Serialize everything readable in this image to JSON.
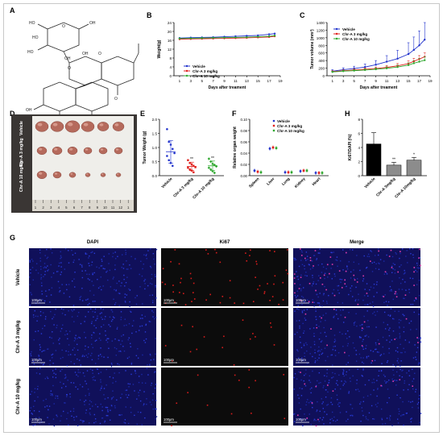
{
  "panels": {
    "a": "A",
    "b": "B",
    "c": "C",
    "d": "D",
    "e": "E",
    "f": "F",
    "g": "G",
    "h": "H"
  },
  "colors": {
    "vehicle": "#2233cc",
    "chr_a_3": "#e0201c",
    "chr_a_10": "#2fa82f",
    "dapi_bg": "#10105a",
    "ki67_bg": "#0c0c0c",
    "bar_vehicle": "#000000",
    "bar_3": "#8c8c8c",
    "bar_10": "#8c8c8c"
  },
  "structure": {
    "ring_labels": [
      "HO",
      "HO",
      "HO",
      "OH",
      "OH",
      "O",
      "O",
      "OH",
      "O",
      "O",
      "O",
      "OH",
      "O"
    ]
  },
  "legend": [
    "Vehicle",
    "Chr-A 3 mg/kg",
    "Chr-A 10 mg/kg"
  ],
  "chart_data": [
    {
      "id": "B",
      "type": "line",
      "ylabel": "Weight(g)",
      "xlabel": "Days after treament",
      "yticks": [
        "0",
        "4",
        "8",
        "12",
        "16",
        "20",
        "24"
      ],
      "ylim": [
        0,
        24
      ],
      "xticks": [
        "1",
        "3",
        "5",
        "7",
        "9",
        "11",
        "13",
        "15",
        "17",
        "19"
      ],
      "xlim": [
        0,
        19
      ],
      "x": [
        1,
        3,
        5,
        7,
        9,
        11,
        13,
        15,
        17,
        18
      ],
      "series": [
        {
          "name": "Vehicle",
          "values": [
            17.0,
            17.2,
            17.3,
            17.4,
            17.6,
            17.8,
            18.0,
            18.2,
            18.7,
            19.0
          ]
        },
        {
          "name": "Chr-A 3 mg/kg",
          "values": [
            16.5,
            16.6,
            16.7,
            16.8,
            16.9,
            17.0,
            17.1,
            17.3,
            17.5,
            17.8
          ]
        },
        {
          "name": "Chr-A 10 mg/kg",
          "values": [
            16.8,
            16.9,
            17.0,
            17.1,
            17.2,
            17.3,
            17.4,
            17.6,
            17.8,
            18.1
          ]
        }
      ]
    },
    {
      "id": "C",
      "type": "line",
      "ylabel": "Tumor volume (mm³)",
      "xlabel": "Days after treament",
      "yticks": [
        "0",
        "200",
        "400",
        "600",
        "800",
        "1000",
        "1200",
        "1400"
      ],
      "ylim": [
        0,
        1400
      ],
      "xticks": [
        "1",
        "3",
        "5",
        "7",
        "9",
        "11",
        "13",
        "15",
        "17",
        "19"
      ],
      "xlim": [
        0,
        19
      ],
      "x": [
        1,
        3,
        5,
        7,
        9,
        11,
        13,
        15,
        16,
        17,
        18
      ],
      "series": [
        {
          "name": "Vehicle",
          "values": [
            120,
            160,
            190,
            230,
            290,
            370,
            450,
            570,
            680,
            800,
            950
          ],
          "err": [
            40,
            50,
            60,
            80,
            110,
            160,
            220,
            300,
            340,
            380,
            450
          ]
        },
        {
          "name": "Chr-A 3 mg/kg",
          "values": [
            110,
            130,
            150,
            170,
            190,
            220,
            260,
            320,
            380,
            440,
            500
          ],
          "err": [
            20,
            25,
            30,
            35,
            40,
            50,
            60,
            70,
            80,
            90,
            100
          ]
        },
        {
          "name": "Chr-A 10 mg/kg",
          "values": [
            100,
            120,
            135,
            150,
            170,
            195,
            230,
            280,
            330,
            370,
            410
          ],
          "err": [
            20,
            25,
            25,
            30,
            35,
            40,
            50,
            60,
            70,
            80,
            90
          ]
        }
      ]
    },
    {
      "id": "E",
      "type": "scatter",
      "ylabel": "Tumor Weight (g)",
      "yticks": [
        "0.0",
        "0.5",
        "1.0",
        "1.5",
        "2.0"
      ],
      "ylim": [
        0,
        2.0
      ],
      "categories": [
        "Vehicle",
        "Chr-A 3 mg/kg",
        "Chr-A 10 mg/kg"
      ],
      "sig": [
        "",
        "**",
        "**"
      ],
      "groups": [
        {
          "name": "Vehicle",
          "mean": 0.85,
          "sd": 0.4,
          "points": [
            1.65,
            1.2,
            1.1,
            0.95,
            0.8,
            0.7,
            0.55,
            0.45,
            0.35
          ]
        },
        {
          "name": "Chr-A 3 mg/kg",
          "mean": 0.33,
          "sd": 0.15,
          "points": [
            0.55,
            0.45,
            0.4,
            0.35,
            0.3,
            0.28,
            0.22,
            0.18,
            0.12
          ]
        },
        {
          "name": "Chr-A 10 mg/kg",
          "mean": 0.35,
          "sd": 0.17,
          "points": [
            0.6,
            0.5,
            0.42,
            0.38,
            0.33,
            0.28,
            0.22,
            0.16,
            0.1
          ]
        }
      ]
    },
    {
      "id": "F",
      "type": "scatter",
      "ylabel": "Relative organ weight",
      "yticks": [
        "0.00",
        "0.02",
        "0.04",
        "0.06",
        "0.08",
        "0.10"
      ],
      "ylim": [
        0,
        0.1
      ],
      "categories": [
        "Spleen",
        "Liver",
        "Lung",
        "Kidney",
        "Heart"
      ],
      "series": [
        {
          "name": "Vehicle",
          "values": [
            0.009,
            0.048,
            0.006,
            0.008,
            0.005
          ]
        },
        {
          "name": "Chr-A 3 mg/kg",
          "values": [
            0.007,
            0.05,
            0.006,
            0.009,
            0.005
          ]
        },
        {
          "name": "Chr-A 10 mg/kg",
          "values": [
            0.006,
            0.049,
            0.006,
            0.009,
            0.005
          ]
        }
      ]
    },
    {
      "id": "H",
      "type": "bar",
      "ylabel": "Ki67/DAPI (%)",
      "yticks": [
        "0",
        "2",
        "4",
        "6",
        "8"
      ],
      "ylim": [
        0,
        8
      ],
      "categories": [
        "Vehicle",
        "Chr-A 3mg/kg",
        "Chr-A 10mg/kg"
      ],
      "values": [
        4.5,
        1.5,
        2.2
      ],
      "err": [
        1.6,
        0.4,
        0.4
      ],
      "sig": [
        "",
        "**",
        "*"
      ]
    }
  ],
  "photo": {
    "row_labels": [
      "Vehicle",
      "Chr-A 3 mg/kg",
      "Chr-A 10 mg/kg"
    ],
    "ruler": [
      "1",
      "2",
      "3",
      "4",
      "5",
      "6",
      "7",
      "8",
      "9",
      "10",
      "11",
      "12",
      "1"
    ]
  },
  "micro": {
    "columns": [
      "DAPI",
      "Ki67",
      "Merge"
    ],
    "rows": [
      "Vehicle",
      "Chr-A 3 mg/kg",
      "Chr-A 10 mg/kg"
    ],
    "scale": "100μm",
    "ki67_density": [
      0.42,
      0.12,
      0.1
    ]
  }
}
